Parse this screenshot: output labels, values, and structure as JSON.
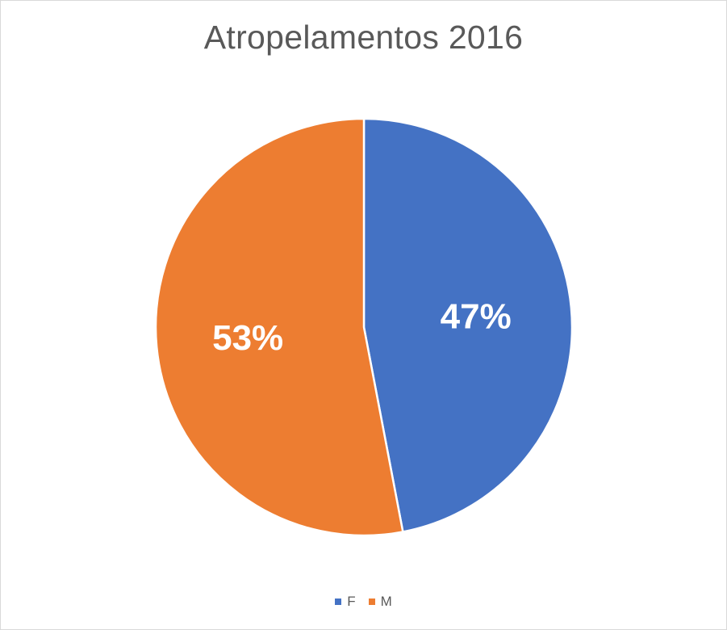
{
  "chart_data": {
    "type": "pie",
    "title": "Atropelamentos 2016",
    "categories": [
      "F",
      "M"
    ],
    "values": [
      47,
      53
    ],
    "labels": [
      "47%",
      "53%"
    ],
    "colors": [
      "#4472C4",
      "#ED7D31"
    ],
    "start_angle_deg": 0,
    "direction": "clockwise",
    "legend_position": "bottom"
  }
}
